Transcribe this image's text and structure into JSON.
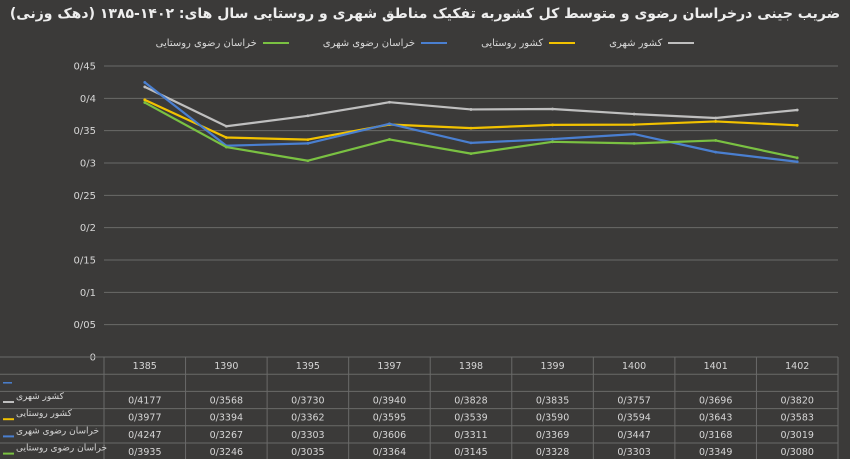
{
  "chart_data": {
    "type": "line",
    "title": "ضریب جینی درخراسان رضوی و متوسط کل کشوربه تفکیک مناطق  شهری و روستایی سال های: ۱۴۰۲-۱۳۸۵  (دهک وزنی)",
    "categories": [
      "1385",
      "1390",
      "1395",
      "1397",
      "1398",
      "1399",
      "1400",
      "1401",
      "1402"
    ],
    "ylim": [
      0,
      0.45
    ],
    "yticks": [
      "0",
      "0/05",
      "0/1",
      "0/15",
      "0/2",
      "0/25",
      "0/3",
      "0/35",
      "0/4",
      "0/45"
    ],
    "grid": true,
    "legend_position": "top",
    "series": [
      {
        "name": "کشور شهری",
        "table_label": "کشور شهری",
        "color": "#bfbfbf",
        "values": [
          0.4177,
          0.3568,
          0.373,
          0.394,
          0.3828,
          0.3835,
          0.3757,
          0.3696,
          0.382
        ],
        "labels": [
          "0/4177",
          "0/3568",
          "0/3730",
          "0/3940",
          "0/3828",
          "0/3835",
          "0/3757",
          "0/3696",
          "0/3820"
        ]
      },
      {
        "name": "کشور روستایی",
        "table_label": "کشور روستایی",
        "color": "#f2c200",
        "values": [
          0.3977,
          0.3394,
          0.3362,
          0.3595,
          0.3539,
          0.359,
          0.3594,
          0.3643,
          0.3583
        ],
        "labels": [
          "0/3977",
          "0/3394",
          "0/3362",
          "0/3595",
          "0/3539",
          "0/3590",
          "0/3594",
          "0/3643",
          "0/3583"
        ]
      },
      {
        "name": "خراسان رضوی شهری",
        "table_label": "خراسان رضوی شهری",
        "color": "#4a7fd0",
        "values": [
          0.4247,
          0.3267,
          0.3303,
          0.3606,
          0.3311,
          0.3369,
          0.3447,
          0.3168,
          0.3019
        ],
        "labels": [
          "0/4247",
          "0/3267",
          "0/3303",
          "0/3606",
          "0/3311",
          "0/3369",
          "0/3447",
          "0/3168",
          "0/3019"
        ]
      },
      {
        "name": "خراسان رضوی روستایی",
        "table_label": "خراسان رضوی روستایی",
        "color": "#7ac142",
        "values": [
          0.3935,
          0.3246,
          0.3035,
          0.3364,
          0.3145,
          0.3328,
          0.3303,
          0.3349,
          0.308
        ],
        "labels": [
          "0/3935",
          "0/3246",
          "0/3035",
          "0/3364",
          "0/3145",
          "0/3328",
          "0/3303",
          "0/3349",
          "0/3080"
        ]
      }
    ]
  }
}
